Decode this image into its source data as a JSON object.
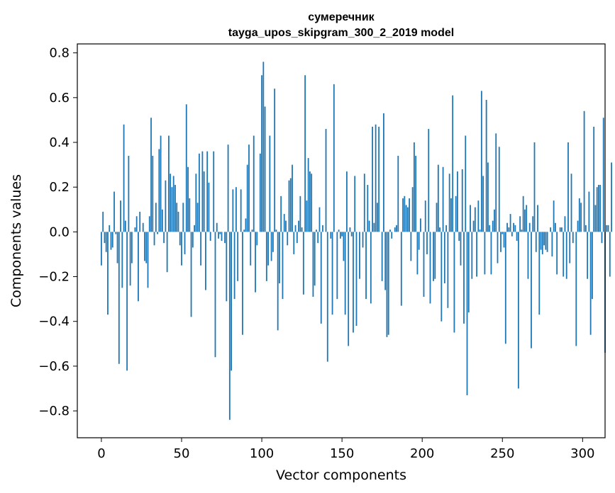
{
  "chart_data": {
    "type": "bar",
    "title": [
      "сумеречник",
      "tayga_upos_skipgram_300_2_2019 model"
    ],
    "xlabel": "Vector components",
    "ylabel": "Components values",
    "xlim": [
      -15,
      314
    ],
    "ylim": [
      -0.92,
      0.84
    ],
    "xticks": [
      0,
      50,
      100,
      150,
      200,
      250,
      300
    ],
    "xtick_labels": [
      "0",
      "50",
      "100",
      "150",
      "200",
      "250",
      "300"
    ],
    "yticks": [
      -0.8,
      -0.6,
      -0.4,
      -0.2,
      0.0,
      0.2,
      0.4,
      0.6,
      0.8
    ],
    "ytick_labels": [
      "−0.8",
      "−0.6",
      "−0.4",
      "−0.2",
      "0.0",
      "0.2",
      "0.4",
      "0.6",
      "0.8"
    ],
    "color": "#1f77b4",
    "values": [
      -0.15,
      0.09,
      -0.05,
      -0.09,
      -0.37,
      0.03,
      -0.08,
      -0.07,
      0.18,
      -0.01,
      -0.14,
      -0.59,
      0.14,
      -0.25,
      0.48,
      0.05,
      -0.62,
      0.34,
      -0.24,
      -0.14,
      0.0,
      0.02,
      0.07,
      -0.31,
      0.09,
      0.0,
      0.04,
      -0.13,
      -0.14,
      -0.25,
      0.07,
      0.51,
      0.34,
      -0.06,
      0.13,
      -0.01,
      0.37,
      0.43,
      0.1,
      -0.05,
      0.23,
      -0.18,
      0.43,
      0.26,
      0.2,
      0.25,
      0.21,
      0.13,
      0.09,
      -0.06,
      -0.15,
      0.13,
      -0.1,
      0.57,
      0.29,
      0.15,
      -0.38,
      -0.07,
      0.03,
      0.26,
      0.13,
      0.35,
      -0.15,
      0.36,
      0.27,
      -0.26,
      0.36,
      0.22,
      -0.04,
      0.0,
      0.36,
      -0.56,
      0.04,
      -0.03,
      -0.01,
      -0.04,
      0.0,
      -0.05,
      -0.31,
      0.39,
      -0.84,
      -0.62,
      0.19,
      -0.3,
      0.2,
      -0.22,
      0.0,
      0.19,
      -0.46,
      0.01,
      0.06,
      0.3,
      0.39,
      -0.15,
      0.01,
      0.43,
      -0.27,
      -0.06,
      0.0,
      0.35,
      0.7,
      0.76,
      0.56,
      -0.22,
      -0.15,
      0.43,
      -0.13,
      -0.09,
      0.64,
      0.01,
      -0.44,
      -0.23,
      0.16,
      -0.3,
      0.08,
      0.05,
      -0.06,
      0.23,
      0.24,
      0.3,
      -0.1,
      0.03,
      -0.05,
      0.05,
      0.16,
      0.02,
      -0.28,
      0.7,
      0.14,
      0.33,
      0.27,
      0.26,
      -0.29,
      -0.24,
      0.01,
      -0.05,
      0.11,
      -0.41,
      0.03,
      0.0,
      0.46,
      -0.58,
      0.0,
      -0.03,
      -0.37,
      0.66,
      0.0,
      -0.3,
      0.01,
      -0.03,
      -0.02,
      -0.13,
      -0.37,
      0.27,
      -0.51,
      0.02,
      -0.02,
      -0.45,
      0.25,
      -0.42,
      0.0,
      -0.21,
      0.0,
      -0.07,
      0.26,
      -0.3,
      0.21,
      0.05,
      -0.32,
      0.47,
      0.04,
      0.48,
      0.13,
      0.47,
      0.0,
      -0.22,
      0.53,
      -0.26,
      -0.47,
      -0.46,
      0.01,
      -0.03,
      0.0,
      0.02,
      0.03,
      0.34,
      0.0,
      -0.33,
      0.15,
      0.16,
      0.12,
      0.11,
      0.15,
      -0.13,
      0.2,
      0.4,
      0.34,
      -0.19,
      -0.08,
      0.06,
      0.0,
      -0.29,
      0.14,
      -0.1,
      0.46,
      -0.32,
      0.0,
      -0.22,
      -0.21,
      0.13,
      0.3,
      0.02,
      -0.4,
      0.29,
      -0.23,
      0.03,
      -0.34,
      0.26,
      0.15,
      0.61,
      -0.45,
      0.16,
      0.27,
      -0.04,
      -0.15,
      0.28,
      -0.41,
      0.43,
      -0.73,
      -0.36,
      0.12,
      -0.21,
      0.05,
      0.11,
      -0.2,
      0.14,
      0.01,
      0.63,
      0.25,
      -0.19,
      0.59,
      0.31,
      0.03,
      -0.19,
      0.05,
      0.1,
      0.44,
      -0.14,
      0.38,
      -0.09,
      -0.01,
      -0.07,
      -0.5,
      0.04,
      0.02,
      0.08,
      -0.02,
      0.04,
      0.03,
      -0.04,
      -0.7,
      0.07,
      0.01,
      0.16,
      0.1,
      0.12,
      -0.21,
      0.04,
      -0.52,
      0.07,
      0.4,
      -0.09,
      0.12,
      -0.37,
      -0.08,
      -0.1,
      -0.06,
      -0.08,
      -0.09,
      0.0,
      0.02,
      -0.11,
      0.14,
      0.04,
      -0.19,
      0.0,
      0.02,
      0.02,
      -0.2,
      0.07,
      -0.21,
      0.4,
      -0.14,
      0.26,
      -0.05,
      0.0,
      -0.51,
      0.05,
      0.15,
      0.13,
      0.0,
      0.54,
      0.03,
      -0.21,
      0.18,
      -0.46,
      -0.3,
      0.47,
      0.12,
      0.2,
      0.21,
      0.21,
      -0.05,
      0.51,
      -0.54,
      0.03,
      0.03,
      -0.2,
      0.31
    ]
  }
}
